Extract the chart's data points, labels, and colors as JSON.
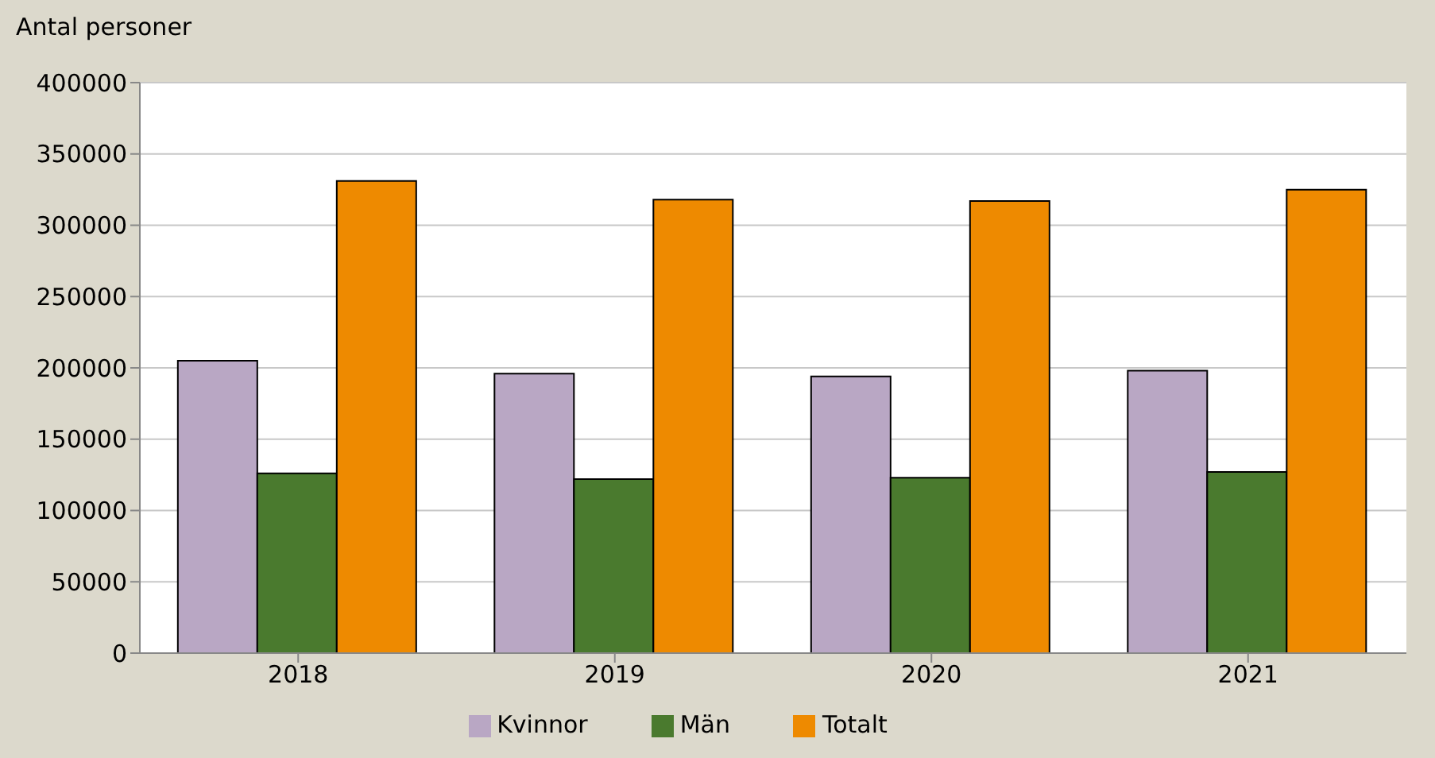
{
  "chart_data": {
    "type": "bar",
    "ylabel": "Antal personer",
    "categories": [
      "2018",
      "2019",
      "2020",
      "2021"
    ],
    "series": [
      {
        "name": "Kvinnor",
        "color": "#b9a7c4",
        "values": [
          205000,
          196000,
          194000,
          198000
        ]
      },
      {
        "name": "Män",
        "color": "#4a7a2e",
        "values": [
          126000,
          122000,
          123000,
          127000
        ]
      },
      {
        "name": "Totalt",
        "color": "#ee8a00",
        "values": [
          331000,
          318000,
          317000,
          325000
        ]
      }
    ],
    "ylim": [
      0,
      400000
    ],
    "yticks": [
      0,
      50000,
      100000,
      150000,
      200000,
      250000,
      300000,
      350000,
      400000
    ],
    "grid": "y",
    "legend": "bottom"
  }
}
